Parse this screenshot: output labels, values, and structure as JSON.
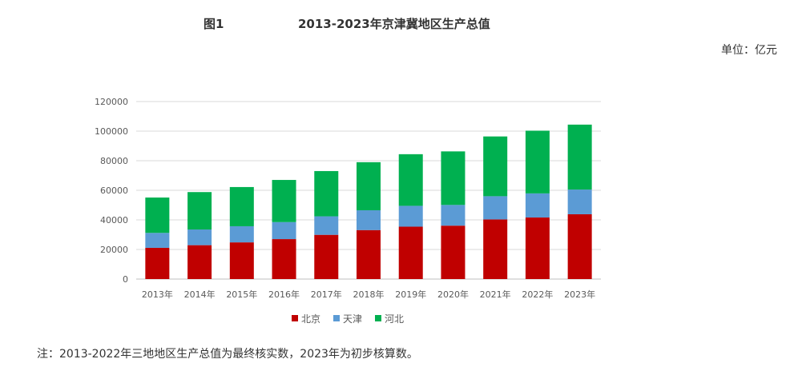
{
  "header": {
    "figure_label": "图1",
    "title": "2013-2023年京津冀地区生产总值",
    "unit": "单位：亿元"
  },
  "note": "注：2013-2022年三地地区生产总值为最终核实数，2023年为初步核算数。",
  "chart_data": {
    "type": "bar",
    "stacked": true,
    "title": "2013-2023年京津冀地区生产总值",
    "xlabel": "",
    "ylabel": "",
    "categories": [
      "2013年",
      "2014年",
      "2015年",
      "2016年",
      "2017年",
      "2018年",
      "2019年",
      "2020年",
      "2021年",
      "2022年",
      "2023年"
    ],
    "ylim": [
      0,
      120000
    ],
    "yticks": [
      0,
      20000,
      40000,
      60000,
      80000,
      100000,
      120000
    ],
    "grid": true,
    "legend_position": "bottom",
    "series": [
      {
        "name": "北京",
        "color": "#C00000",
        "values": [
          21100,
          22900,
          24800,
          27000,
          29900,
          33100,
          35400,
          36100,
          40300,
          41600,
          43800
        ]
      },
      {
        "name": "天津",
        "color": "#5B9BD5",
        "values": [
          10100,
          10600,
          10900,
          11500,
          12500,
          13400,
          14100,
          14000,
          15700,
          16300,
          16700
        ]
      },
      {
        "name": "河北",
        "color": "#00B050",
        "values": [
          23900,
          25300,
          26500,
          28500,
          30600,
          32500,
          34900,
          36200,
          40400,
          42400,
          43900
        ]
      }
    ]
  }
}
